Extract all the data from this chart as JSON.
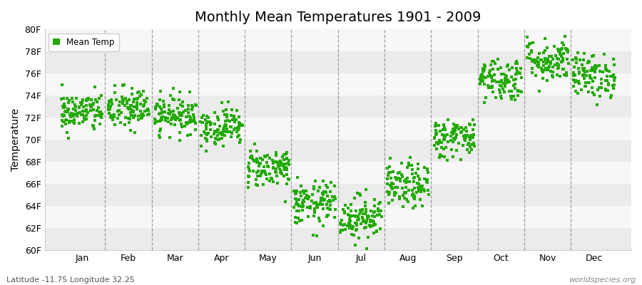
{
  "title": "Monthly Mean Temperatures 1901 - 2009",
  "ylabel": "Temperature",
  "ylim": [
    60,
    80
  ],
  "yticks": [
    60,
    62,
    64,
    66,
    68,
    70,
    72,
    74,
    76,
    78,
    80
  ],
  "ytick_labels": [
    "60F",
    "62F",
    "64F",
    "66F",
    "68F",
    "70F",
    "72F",
    "74F",
    "76F",
    "78F",
    "80F"
  ],
  "months": [
    "Jan",
    "Feb",
    "Mar",
    "Apr",
    "May",
    "Jun",
    "Jul",
    "Aug",
    "Sep",
    "Oct",
    "Nov",
    "Dec"
  ],
  "dot_color": "#22AA00",
  "background_color": "#ffffff",
  "plot_bg_color": "#f5f5f5",
  "band_colors": [
    "#ebebeb",
    "#f7f7f7"
  ],
  "n_years": 109,
  "mean_temps": [
    72.5,
    72.8,
    72.3,
    71.2,
    67.5,
    64.2,
    63.0,
    65.8,
    70.2,
    75.5,
    77.2,
    75.8
  ],
  "std_temps": [
    0.9,
    1.0,
    0.85,
    0.85,
    0.9,
    1.0,
    1.0,
    1.0,
    0.9,
    1.0,
    1.0,
    1.0
  ],
  "seed": 42,
  "footer_left": "Latitude -11.75 Longitude 32.25",
  "footer_right": "worldspecies.org",
  "legend_label": "Mean Temp",
  "dashed_line_color": "#888888",
  "title_fontsize": 14,
  "axis_fontsize": 9,
  "ylabel_fontsize": 10,
  "footer_fontsize": 8
}
